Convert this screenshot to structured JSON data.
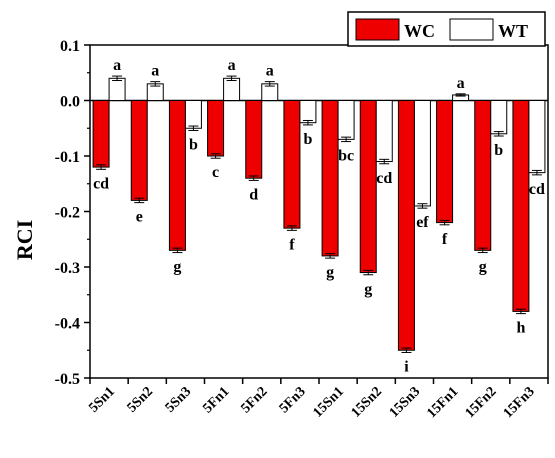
{
  "chart_data": {
    "type": "bar",
    "title": "",
    "xlabel": "",
    "ylabel": "RCI",
    "ylim": [
      -0.5,
      0.1
    ],
    "yticks": [
      0.1,
      0.0,
      -0.1,
      -0.2,
      -0.3,
      -0.4,
      -0.5
    ],
    "ytick_labels": [
      "0.1",
      "0.0",
      "-0.1",
      "-0.2",
      "-0.3",
      "-0.4",
      "-0.5"
    ],
    "grid": false,
    "legend_position": "top-right",
    "categories": [
      "5Sn1",
      "5Sn2",
      "5Sn3",
      "5Fn1",
      "5Fn2",
      "5Fn3",
      "15Sn1",
      "15Sn2",
      "15Sn3",
      "15Fn1",
      "15Fn2",
      "15Fn3"
    ],
    "series": [
      {
        "name": "WC",
        "color": "#ee0000",
        "values": [
          -0.12,
          -0.18,
          -0.27,
          -0.1,
          -0.14,
          -0.23,
          -0.28,
          -0.31,
          -0.45,
          -0.22,
          -0.27,
          -0.38
        ],
        "errors": [
          0.004,
          0.004,
          0.004,
          0.004,
          0.004,
          0.004,
          0.004,
          0.004,
          0.004,
          0.004,
          0.004,
          0.004
        ],
        "labels": [
          "cd",
          "e",
          "g",
          "c",
          "d",
          "f",
          "g",
          "g",
          "i",
          "f",
          "g",
          "h"
        ]
      },
      {
        "name": "WT",
        "color": "#ffffff",
        "values": [
          0.04,
          0.03,
          -0.05,
          0.04,
          0.03,
          -0.04,
          -0.07,
          -0.11,
          -0.19,
          0.01,
          -0.06,
          -0.13
        ],
        "errors": [
          0.004,
          0.004,
          0.004,
          0.004,
          0.004,
          0.004,
          0.004,
          0.004,
          0.004,
          0.002,
          0.004,
          0.004
        ],
        "labels": [
          "a",
          "a",
          "b",
          "a",
          "a",
          "b",
          "bc",
          "cd",
          "ef",
          "a",
          "b",
          "cd"
        ]
      }
    ]
  }
}
